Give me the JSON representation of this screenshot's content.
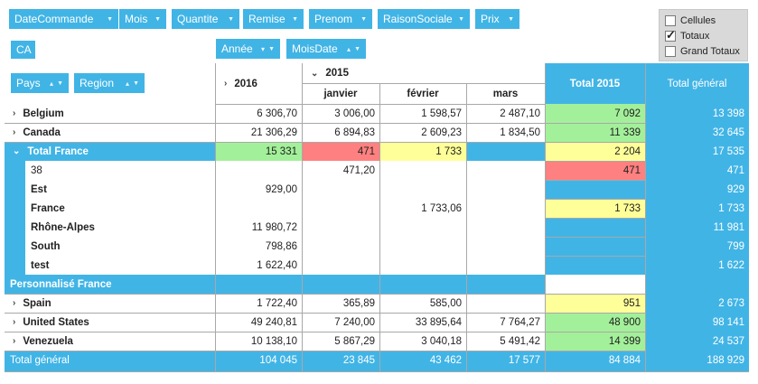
{
  "filter_fields": [
    {
      "label": "DateCommande",
      "sort": false
    },
    {
      "label": "Mois",
      "sort": false
    },
    {
      "label": "Quantite",
      "sort": false
    },
    {
      "label": "Remise",
      "sort": false
    },
    {
      "label": "Prenom",
      "sort": false
    },
    {
      "label": "RaisonSociale",
      "sort": false
    },
    {
      "label": "Prix",
      "sort": false
    }
  ],
  "data_field": {
    "label": "CA"
  },
  "column_fields": [
    {
      "label": "Année",
      "sort": "▾"
    },
    {
      "label": "MoisDate",
      "sort": "▴"
    }
  ],
  "row_fields": [
    {
      "label": "Pays",
      "sort": "▴"
    },
    {
      "label": "Region",
      "sort": "▴"
    }
  ],
  "options": [
    {
      "label": "Cellules",
      "checked": false
    },
    {
      "label": "Totaux",
      "checked": true
    },
    {
      "label": "Grand Totaux",
      "checked": false
    }
  ],
  "columns": {
    "year_2016": "2016",
    "year_2015": "2015",
    "months": [
      "janvier",
      "février",
      "mars"
    ],
    "total_2015": "Total 2015",
    "grand_total": "Total général"
  },
  "rows": [
    {
      "label": "Belgium",
      "type": "country",
      "v2016": "6 306,70",
      "jan": "3 006,00",
      "feb": "1 598,57",
      "mar": "2 487,10",
      "t2015": "7 092",
      "total": "13 398",
      "c2015": "#a3f09a"
    },
    {
      "label": "Canada",
      "type": "country",
      "v2016": "21 306,29",
      "jan": "6 894,83",
      "feb": "2 609,23",
      "mar": "1 834,50",
      "t2015": "11 339",
      "total": "32 645",
      "c2015": "#a3f09a"
    },
    {
      "label": "Total France",
      "type": "subtotal",
      "v2016": "15 331",
      "jan": "471",
      "feb": "1 733",
      "mar": "",
      "t2015": "2 204",
      "total": "17 535",
      "c2016": "#a3f09a",
      "cjan": "#ff8080",
      "cfeb": "#ffff99",
      "c2015": "#ffff99"
    },
    {
      "label": "38",
      "type": "region",
      "v2016": "",
      "jan": "471,20",
      "feb": "",
      "mar": "",
      "t2015": "471",
      "total": "471",
      "c2015": "#ff8080"
    },
    {
      "label": "Est",
      "type": "region",
      "v2016": "929,00",
      "jan": "",
      "feb": "",
      "mar": "",
      "t2015": "",
      "total": "929",
      "c2015": "#41b4e6"
    },
    {
      "label": "France",
      "type": "region",
      "v2016": "",
      "jan": "",
      "feb": "1 733,06",
      "mar": "",
      "t2015": "1 733",
      "total": "1 733",
      "c2015": "#ffff99"
    },
    {
      "label": "Rhône-Alpes",
      "type": "region",
      "v2016": "11 980,72",
      "jan": "",
      "feb": "",
      "mar": "",
      "t2015": "",
      "total": "11 981",
      "c2015": "#41b4e6"
    },
    {
      "label": "South",
      "type": "region",
      "v2016": "798,86",
      "jan": "",
      "feb": "",
      "mar": "",
      "t2015": "",
      "total": "799",
      "c2015": "#41b4e6"
    },
    {
      "label": "test",
      "type": "region",
      "v2016": "1 622,40",
      "jan": "",
      "feb": "",
      "mar": "",
      "t2015": "",
      "total": "1 622",
      "c2015": "#41b4e6"
    },
    {
      "label": "Personnalisé France",
      "type": "custom",
      "v2016": "",
      "jan": "",
      "feb": "",
      "mar": "",
      "t2015": "",
      "total": ""
    },
    {
      "label": "Spain",
      "type": "country",
      "v2016": "1 722,40",
      "jan": "365,89",
      "feb": "585,00",
      "mar": "",
      "t2015": "951",
      "total": "2 673",
      "c2015": "#ffff99"
    },
    {
      "label": "United States",
      "type": "country",
      "v2016": "49 240,81",
      "jan": "7 240,00",
      "feb": "33 895,64",
      "mar": "7 764,27",
      "t2015": "48 900",
      "total": "98 141",
      "c2015": "#a3f09a"
    },
    {
      "label": "Venezuela",
      "type": "country",
      "v2016": "10 138,10",
      "jan": "5 867,29",
      "feb": "3 040,18",
      "mar": "5 491,42",
      "t2015": "14 399",
      "total": "24 537",
      "c2015": "#a3f09a"
    },
    {
      "label": "Total général",
      "type": "grand",
      "v2016": "104 045",
      "jan": "23 845",
      "feb": "43 462",
      "mar": "17 577",
      "t2015": "84 884",
      "total": "188 929"
    }
  ],
  "colors": {
    "accent": "#41b4e6",
    "good": "#a3f09a",
    "warn": "#ffff99",
    "bad": "#ff8080"
  }
}
